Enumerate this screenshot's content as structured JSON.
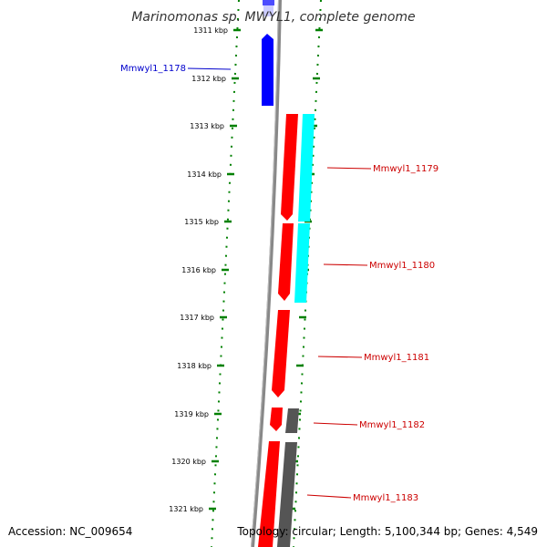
{
  "title": "Marinomonas sp. MWYL1, complete genome",
  "footer": {
    "accession": "Accession: NC_009654",
    "topology": "Topology: circular; Length: 5,100,344 bp; Genes: 4,549"
  },
  "colors": {
    "forward_gene": "#ff0000",
    "reverse_gene": "#0000ff",
    "cds_cyan": "#00ffff",
    "cds_gray": "#555555",
    "tick": "#008000",
    "backbone": "#777777",
    "label_red": "#cc0000",
    "label_blue": "#0000cc"
  },
  "ticks": [
    {
      "label": "1311 kbp"
    },
    {
      "label": "1312 kbp"
    },
    {
      "label": "1313 kbp"
    },
    {
      "label": "1314 kbp"
    },
    {
      "label": "1315 kbp"
    },
    {
      "label": "1316 kbp"
    },
    {
      "label": "1317 kbp"
    },
    {
      "label": "1318 kbp"
    },
    {
      "label": "1319 kbp"
    },
    {
      "label": "1320 kbp"
    },
    {
      "label": "1321 kbp"
    }
  ],
  "genes": [
    {
      "label": "Mmwyl1_1178",
      "strand": "reverse"
    },
    {
      "label": "Mmwyl1_1179",
      "strand": "forward"
    },
    {
      "label": "Mmwyl1_1180",
      "strand": "forward"
    },
    {
      "label": "Mmwyl1_1181",
      "strand": "forward"
    },
    {
      "label": "Mmwyl1_1182",
      "strand": "forward"
    },
    {
      "label": "Mmwyl1_1183",
      "strand": "forward"
    }
  ]
}
